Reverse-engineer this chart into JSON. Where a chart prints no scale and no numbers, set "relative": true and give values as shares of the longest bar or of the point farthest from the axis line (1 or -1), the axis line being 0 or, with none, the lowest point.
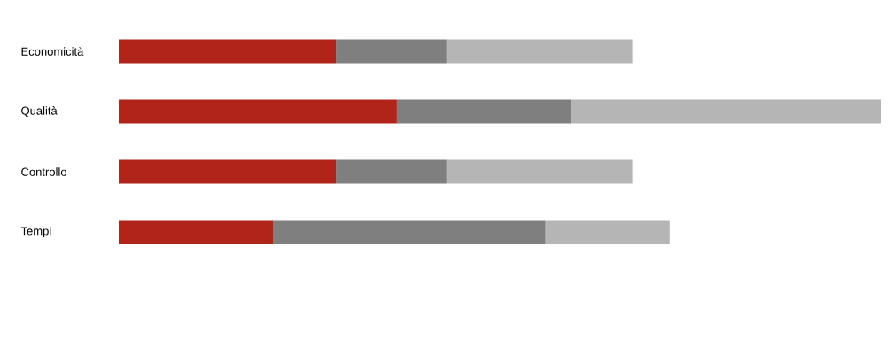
{
  "chart_data": {
    "type": "bar",
    "orientation": "horizontal",
    "stacked": true,
    "relative": true,
    "categories": [
      "Economicità",
      "Qualità",
      "Controllo",
      "Tempi"
    ],
    "series": [
      {
        "color": "#b0241a",
        "values": [
          0.285,
          0.365,
          0.285,
          0.203
        ]
      },
      {
        "color": "#7f7f7f",
        "values": [
          0.145,
          0.228,
          0.145,
          0.357
        ]
      },
      {
        "color": "#b5b5b5",
        "values": [
          0.244,
          0.407,
          0.244,
          0.163
        ]
      }
    ]
  }
}
